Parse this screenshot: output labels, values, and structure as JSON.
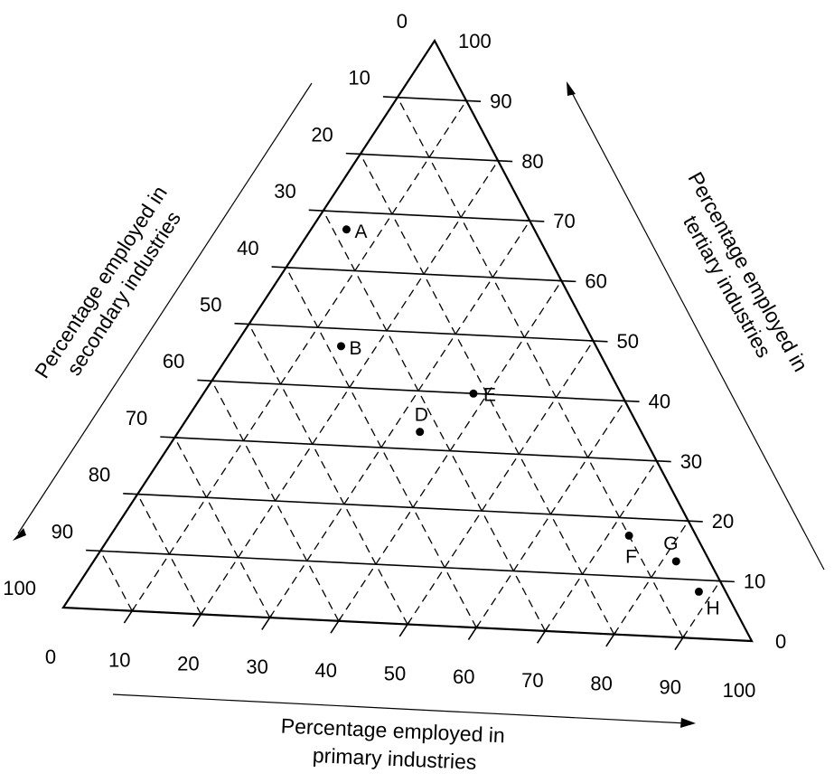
{
  "chart_data": {
    "type": "scatter",
    "subtype": "ternary",
    "title": "",
    "grid": true,
    "axes": {
      "primary": {
        "title_line1": "Percentage employed in",
        "title_line2": "primary industries",
        "ticks": [
          "0",
          "10",
          "20",
          "30",
          "40",
          "50",
          "60",
          "70",
          "80",
          "90",
          "100"
        ]
      },
      "secondary": {
        "title_line1": "Percentage employed in",
        "title_line2": "secondary industries",
        "ticks": [
          "0",
          "10",
          "20",
          "30",
          "40",
          "50",
          "60",
          "70",
          "80",
          "90",
          "100"
        ]
      },
      "tertiary": {
        "title_line1": "Percentage employed in",
        "title_line2": "tertiary industries",
        "ticks": [
          "0",
          "10",
          "20",
          "30",
          "40",
          "50",
          "60",
          "70",
          "80",
          "90",
          "100"
        ]
      }
    },
    "points": [
      {
        "label": "A",
        "primary": 5,
        "secondary": 28,
        "tertiary": 67
      },
      {
        "label": "B",
        "primary": 15,
        "secondary": 38,
        "tertiary": 47
      },
      {
        "label": "D",
        "primary": 34,
        "secondary": 33,
        "tertiary": 33
      },
      {
        "label": "E",
        "primary": 38,
        "secondary": 22,
        "tertiary": 40
      },
      {
        "label": "F",
        "primary": 73,
        "secondary": 10,
        "tertiary": 17
      },
      {
        "label": "G",
        "primary": 82,
        "secondary": 5,
        "tertiary": 13
      },
      {
        "label": "H",
        "primary": 88,
        "secondary": 4,
        "tertiary": 8
      }
    ]
  }
}
